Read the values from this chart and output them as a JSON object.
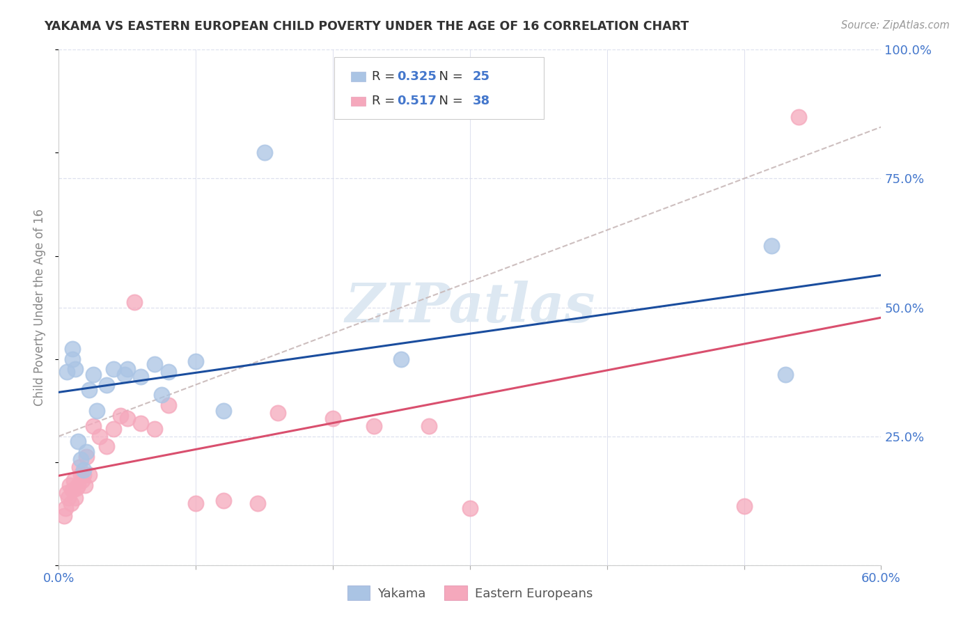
{
  "title": "YAKAMA VS EASTERN EUROPEAN CHILD POVERTY UNDER THE AGE OF 16 CORRELATION CHART",
  "source": "Source: ZipAtlas.com",
  "ylabel": "Child Poverty Under the Age of 16",
  "xlim": [
    0.0,
    0.6
  ],
  "ylim": [
    0.0,
    1.0
  ],
  "xticks": [
    0.0,
    0.1,
    0.2,
    0.3,
    0.4,
    0.5,
    0.6
  ],
  "xticklabels": [
    "0.0%",
    "",
    "",
    "",
    "",
    "",
    "60.0%"
  ],
  "yticks": [
    0.0,
    0.25,
    0.5,
    0.75,
    1.0
  ],
  "yticklabels": [
    "",
    "25.0%",
    "50.0%",
    "75.0%",
    "100.0%"
  ],
  "legend_R": [
    0.325,
    0.517
  ],
  "legend_N": [
    25,
    38
  ],
  "yakama_color": "#aac4e4",
  "eastern_color": "#f5a8bc",
  "yakama_trend_color": "#1a4d9e",
  "eastern_trend_color": "#d94f6e",
  "ref_line_color": "#c8b8b8",
  "watermark_text": "ZIPatlas",
  "watermark_color": "#dde8f2",
  "grid_color": "#dde0ee",
  "axis_label_color": "#4477cc",
  "text_color": "#333333",
  "yakama_x": [
    0.006,
    0.01,
    0.01,
    0.012,
    0.014,
    0.016,
    0.018,
    0.02,
    0.022,
    0.025,
    0.028,
    0.035,
    0.04,
    0.05,
    0.06,
    0.07,
    0.075,
    0.08,
    0.1,
    0.12,
    0.15,
    0.25,
    0.52,
    0.53,
    0.048
  ],
  "yakama_y": [
    0.375,
    0.42,
    0.4,
    0.38,
    0.24,
    0.205,
    0.185,
    0.22,
    0.34,
    0.37,
    0.3,
    0.35,
    0.38,
    0.38,
    0.365,
    0.39,
    0.33,
    0.375,
    0.395,
    0.3,
    0.8,
    0.4,
    0.62,
    0.37,
    0.37
  ],
  "eastern_x": [
    0.004,
    0.005,
    0.006,
    0.007,
    0.008,
    0.009,
    0.01,
    0.011,
    0.012,
    0.013,
    0.014,
    0.015,
    0.016,
    0.017,
    0.018,
    0.019,
    0.02,
    0.022,
    0.025,
    0.03,
    0.035,
    0.04,
    0.045,
    0.05,
    0.055,
    0.06,
    0.07,
    0.08,
    0.1,
    0.12,
    0.145,
    0.16,
    0.2,
    0.23,
    0.27,
    0.3,
    0.5,
    0.54
  ],
  "eastern_y": [
    0.095,
    0.11,
    0.14,
    0.13,
    0.155,
    0.12,
    0.145,
    0.165,
    0.13,
    0.15,
    0.155,
    0.19,
    0.175,
    0.165,
    0.175,
    0.155,
    0.21,
    0.175,
    0.27,
    0.25,
    0.23,
    0.265,
    0.29,
    0.285,
    0.51,
    0.275,
    0.265,
    0.31,
    0.12,
    0.125,
    0.12,
    0.295,
    0.285,
    0.27,
    0.27,
    0.11,
    0.115,
    0.87
  ]
}
